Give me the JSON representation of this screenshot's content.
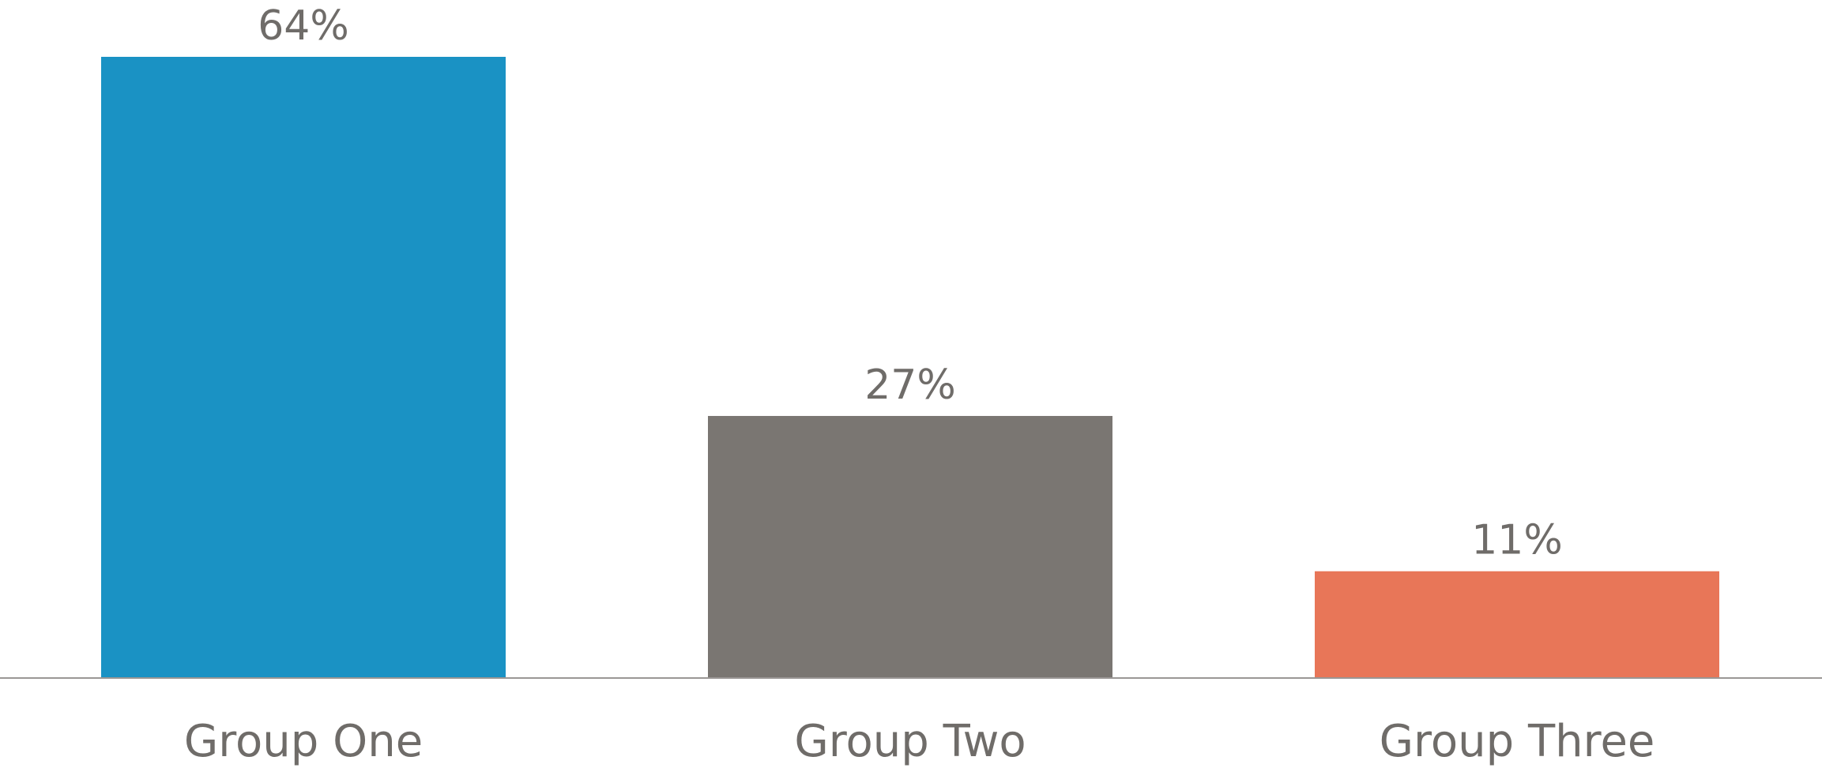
{
  "chart_data": {
    "type": "bar",
    "categories": [
      "Group One",
      "Group Two",
      "Group Three"
    ],
    "values": [
      64,
      27,
      11
    ],
    "value_labels": [
      "64%",
      "27%",
      "11%"
    ],
    "colors": [
      "#1a92c4",
      "#7a7672",
      "#e87658"
    ],
    "ylim": [
      0,
      64
    ],
    "grid": false,
    "legend": "none",
    "axis_color": "#9a9795",
    "label_color": "#6f6c69"
  }
}
